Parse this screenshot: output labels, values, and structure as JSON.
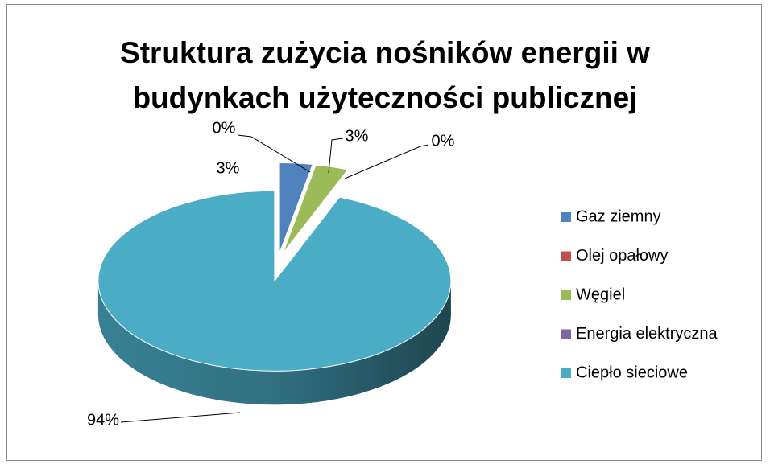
{
  "chart_data": {
    "type": "pie",
    "title": "Struktura zużycia nośników energii w budynkach użyteczności publicznej",
    "categories": [
      "Gaz ziemny",
      "Olej opałowy",
      "Węgiel",
      "Energia elektryczna",
      "Ciepło sieciowe"
    ],
    "values": [
      3,
      0,
      3,
      0,
      94
    ],
    "value_labels": [
      "3%",
      "0%",
      "3%",
      "0%",
      "94%"
    ],
    "colors": [
      "#4f81bd",
      "#c0504d",
      "#9bbb59",
      "#8064a2",
      "#4bacc6"
    ],
    "legend": "right"
  }
}
